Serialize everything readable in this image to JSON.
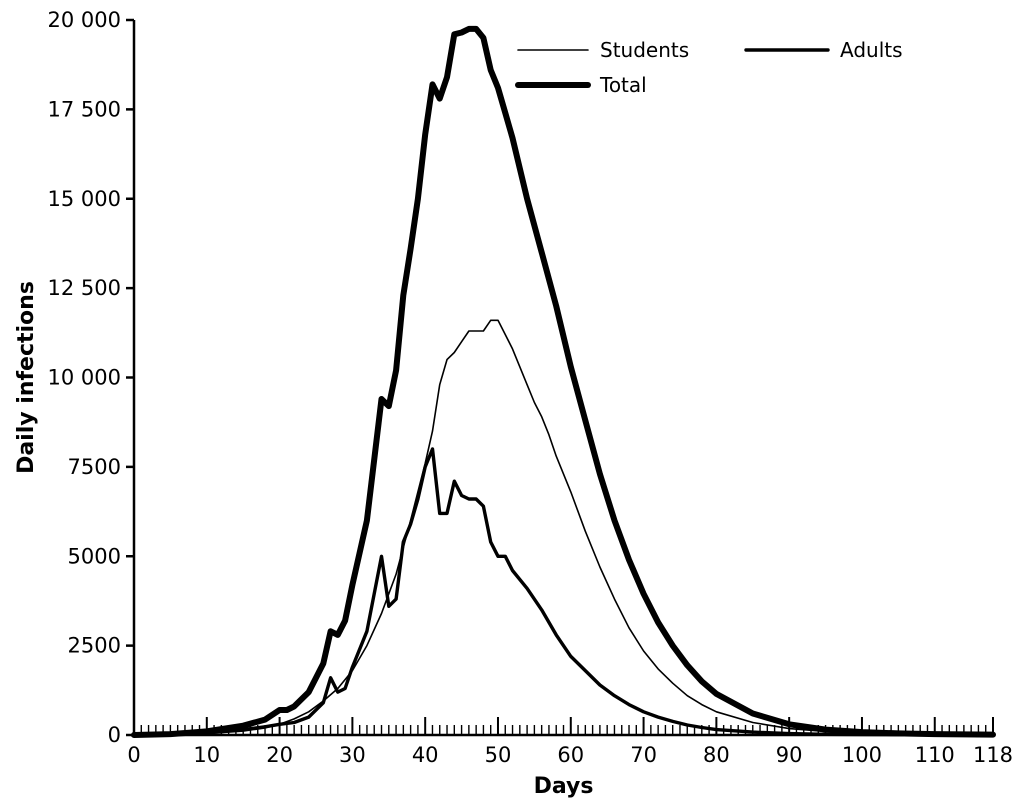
{
  "chart_data": {
    "type": "line",
    "xlabel": "Days",
    "ylabel": "Daily infections",
    "xlim": [
      0,
      118
    ],
    "ylim": [
      0,
      20000
    ],
    "x_tick_labels": [
      "0",
      "10",
      "20",
      "30",
      "40",
      "50",
      "60",
      "70",
      "80",
      "90",
      "100",
      "110",
      "118"
    ],
    "y_tick_labels": [
      "0",
      "2500",
      "5000",
      "7500",
      "10 000",
      "12 500",
      "15 000",
      "17 500",
      "20 000"
    ],
    "legend_position": "top-right",
    "series": [
      {
        "name": "Students",
        "line": "thin",
        "points": [
          [
            0,
            0
          ],
          [
            5,
            10
          ],
          [
            10,
            40
          ],
          [
            15,
            110
          ],
          [
            18,
            200
          ],
          [
            20,
            300
          ],
          [
            22,
            450
          ],
          [
            24,
            650
          ],
          [
            26,
            950
          ],
          [
            28,
            1300
          ],
          [
            30,
            1800
          ],
          [
            32,
            2500
          ],
          [
            34,
            3400
          ],
          [
            36,
            4500
          ],
          [
            38,
            6000
          ],
          [
            40,
            7600
          ],
          [
            41,
            8500
          ],
          [
            42,
            9800
          ],
          [
            43,
            10500
          ],
          [
            44,
            10700
          ],
          [
            45,
            11000
          ],
          [
            46,
            11300
          ],
          [
            47,
            11300
          ],
          [
            48,
            11300
          ],
          [
            49,
            11600
          ],
          [
            50,
            11600
          ],
          [
            51,
            11200
          ],
          [
            52,
            10800
          ],
          [
            53,
            10300
          ],
          [
            54,
            9800
          ],
          [
            55,
            9300
          ],
          [
            56,
            8900
          ],
          [
            57,
            8400
          ],
          [
            58,
            7800
          ],
          [
            60,
            6800
          ],
          [
            62,
            5700
          ],
          [
            64,
            4700
          ],
          [
            66,
            3800
          ],
          [
            68,
            3000
          ],
          [
            70,
            2350
          ],
          [
            72,
            1850
          ],
          [
            74,
            1450
          ],
          [
            76,
            1100
          ],
          [
            78,
            850
          ],
          [
            80,
            650
          ],
          [
            85,
            350
          ],
          [
            90,
            180
          ],
          [
            95,
            100
          ],
          [
            100,
            60
          ],
          [
            105,
            35
          ],
          [
            110,
            20
          ],
          [
            118,
            10
          ]
        ]
      },
      {
        "name": "Adults",
        "line": "medium",
        "points": [
          [
            0,
            0
          ],
          [
            5,
            15
          ],
          [
            10,
            60
          ],
          [
            15,
            150
          ],
          [
            18,
            230
          ],
          [
            20,
            300
          ],
          [
            22,
            350
          ],
          [
            24,
            500
          ],
          [
            26,
            900
          ],
          [
            27,
            1600
          ],
          [
            28,
            1200
          ],
          [
            29,
            1300
          ],
          [
            30,
            1900
          ],
          [
            32,
            2900
          ],
          [
            34,
            5000
          ],
          [
            35,
            3600
          ],
          [
            36,
            3800
          ],
          [
            37,
            5400
          ],
          [
            38,
            5900
          ],
          [
            39,
            6600
          ],
          [
            40,
            7500
          ],
          [
            41,
            8000
          ],
          [
            42,
            6200
          ],
          [
            43,
            6200
          ],
          [
            44,
            7100
          ],
          [
            45,
            6700
          ],
          [
            46,
            6600
          ],
          [
            47,
            6600
          ],
          [
            48,
            6400
          ],
          [
            49,
            5400
          ],
          [
            50,
            5000
          ],
          [
            51,
            5000
          ],
          [
            52,
            4600
          ],
          [
            54,
            4100
          ],
          [
            56,
            3500
          ],
          [
            58,
            2800
          ],
          [
            60,
            2200
          ],
          [
            62,
            1800
          ],
          [
            64,
            1400
          ],
          [
            66,
            1100
          ],
          [
            68,
            850
          ],
          [
            70,
            650
          ],
          [
            72,
            500
          ],
          [
            74,
            380
          ],
          [
            76,
            280
          ],
          [
            78,
            210
          ],
          [
            80,
            150
          ],
          [
            85,
            80
          ],
          [
            90,
            40
          ],
          [
            95,
            20
          ],
          [
            100,
            10
          ],
          [
            110,
            5
          ],
          [
            118,
            2
          ]
        ]
      },
      {
        "name": "Total",
        "line": "thick",
        "points": [
          [
            0,
            0
          ],
          [
            5,
            25
          ],
          [
            10,
            100
          ],
          [
            15,
            260
          ],
          [
            18,
            430
          ],
          [
            20,
            700
          ],
          [
            21,
            700
          ],
          [
            22,
            800
          ],
          [
            24,
            1200
          ],
          [
            26,
            2000
          ],
          [
            27,
            2900
          ],
          [
            28,
            2800
          ],
          [
            29,
            3200
          ],
          [
            30,
            4200
          ],
          [
            32,
            6000
          ],
          [
            34,
            9400
          ],
          [
            35,
            9200
          ],
          [
            36,
            10200
          ],
          [
            37,
            12300
          ],
          [
            38,
            13600
          ],
          [
            39,
            15000
          ],
          [
            40,
            16800
          ],
          [
            41,
            18200
          ],
          [
            42,
            17800
          ],
          [
            43,
            18400
          ],
          [
            44,
            19600
          ],
          [
            45,
            19650
          ],
          [
            46,
            19750
          ],
          [
            47,
            19750
          ],
          [
            48,
            19500
          ],
          [
            49,
            18600
          ],
          [
            50,
            18100
          ],
          [
            51,
            17400
          ],
          [
            52,
            16700
          ],
          [
            54,
            15000
          ],
          [
            56,
            13500
          ],
          [
            58,
            12000
          ],
          [
            60,
            10300
          ],
          [
            62,
            8800
          ],
          [
            64,
            7300
          ],
          [
            66,
            6000
          ],
          [
            68,
            4900
          ],
          [
            70,
            3950
          ],
          [
            72,
            3150
          ],
          [
            74,
            2500
          ],
          [
            76,
            1950
          ],
          [
            78,
            1500
          ],
          [
            80,
            1150
          ],
          [
            85,
            600
          ],
          [
            90,
            300
          ],
          [
            95,
            150
          ],
          [
            100,
            80
          ],
          [
            105,
            45
          ],
          [
            110,
            25
          ],
          [
            118,
            10
          ]
        ]
      }
    ]
  }
}
